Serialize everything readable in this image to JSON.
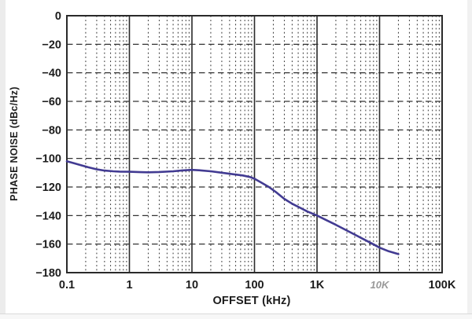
{
  "chart_data": {
    "type": "line",
    "title": "",
    "xlabel": "OFFSET (kHz)",
    "ylabel": "PHASE NOISE (dBc/Hz)",
    "x_scale": "log",
    "xlim": [
      0.1,
      100000
    ],
    "ylim": [
      -180,
      0
    ],
    "x_ticks": [
      {
        "value": 0.1,
        "label": "0.1"
      },
      {
        "value": 1,
        "label": "1"
      },
      {
        "value": 10,
        "label": "10"
      },
      {
        "value": 100,
        "label": "100"
      },
      {
        "value": 1000,
        "label": "1K"
      },
      {
        "value": 10000,
        "label": "10K",
        "faded": true
      },
      {
        "value": 100000,
        "label": "100K"
      }
    ],
    "y_ticks": [
      {
        "value": 0,
        "label": "0"
      },
      {
        "value": -20,
        "label": "-20"
      },
      {
        "value": -40,
        "label": "-40"
      },
      {
        "value": -60,
        "label": "-60"
      },
      {
        "value": -80,
        "label": "-80"
      },
      {
        "value": -100,
        "label": "-100"
      },
      {
        "value": -120,
        "label": "-120"
      },
      {
        "value": -140,
        "label": "-140"
      },
      {
        "value": -160,
        "label": "-160"
      },
      {
        "value": -180,
        "label": "-180"
      }
    ],
    "grid": {
      "h_major": "dashed",
      "v_major": "solid",
      "v_minor_log": "dashed"
    },
    "legend": "none",
    "series": [
      {
        "name": "phase noise",
        "color": "#423b92",
        "points": [
          [
            0.1,
            -102
          ],
          [
            0.13,
            -103.3
          ],
          [
            0.17,
            -104.8
          ],
          [
            0.22,
            -106.2
          ],
          [
            0.3,
            -107.6
          ],
          [
            0.4,
            -108.5
          ],
          [
            0.55,
            -109
          ],
          [
            0.7,
            -109.2
          ],
          [
            1,
            -109.3
          ],
          [
            1.5,
            -109.6
          ],
          [
            2,
            -109.7
          ],
          [
            3,
            -109.5
          ],
          [
            5,
            -109
          ],
          [
            7,
            -108.4
          ],
          [
            10,
            -108
          ],
          [
            14,
            -108.4
          ],
          [
            20,
            -109
          ],
          [
            30,
            -110
          ],
          [
            45,
            -111
          ],
          [
            65,
            -111.9
          ],
          [
            85,
            -113
          ],
          [
            100,
            -114.2
          ],
          [
            130,
            -117
          ],
          [
            170,
            -120
          ],
          [
            220,
            -123.5
          ],
          [
            300,
            -128.3
          ],
          [
            400,
            -131.7
          ],
          [
            550,
            -134.8
          ],
          [
            700,
            -137.2
          ],
          [
            1000,
            -140
          ],
          [
            1400,
            -143.2
          ],
          [
            2000,
            -146.5
          ],
          [
            3000,
            -150.5
          ],
          [
            4200,
            -153.8
          ],
          [
            5500,
            -156.5
          ],
          [
            7500,
            -159.5
          ],
          [
            10000,
            -162.5
          ],
          [
            14000,
            -165
          ],
          [
            20000,
            -167
          ]
        ]
      }
    ]
  },
  "colors": {
    "curve": "#423b92",
    "grid": "#333333",
    "frame": "#2a2a2a",
    "text": "#1c1c1c",
    "page_margin": "#ececec"
  }
}
